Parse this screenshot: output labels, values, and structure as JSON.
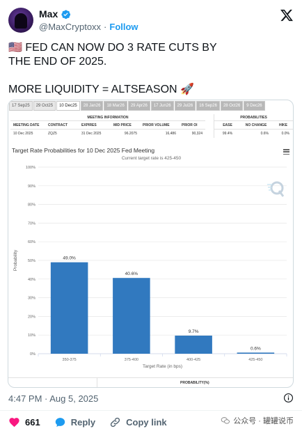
{
  "author": {
    "name": "Max",
    "handle": "@MaxCryptoxx",
    "separator": "·",
    "follow_label": "Follow"
  },
  "tweet": {
    "line1": "🇺🇸 FED CAN NOW DO 3 RATE CUTS BY",
    "line2": "THE END OF 2025.",
    "line3": "MORE LIQUIDITY = ALTSEASON 🚀"
  },
  "card": {
    "date_tabs": [
      "17 Sep25",
      "29 Oct25",
      "10 Dec25",
      "28 Jan26",
      "18 Mar26",
      "29 Apr26",
      "17 Jun26",
      "29 Jul26",
      "16 Sep26",
      "28 Oct26",
      "9 Dec26"
    ],
    "meeting_info": {
      "heading": "MEETING INFORMATION",
      "headers": [
        "MEETING DATE",
        "CONTRACT",
        "EXPIRES",
        "MID PRICE",
        "PRIOR VOLUME",
        "PRIOR OI"
      ],
      "values": [
        "10 Dec 2025",
        "ZQZ5",
        "31 Dec 2025",
        "96.2075",
        "16,486",
        "90,324"
      ]
    },
    "probabilities": {
      "heading": "PROBABILITIES",
      "headers": [
        "EASE",
        "NO CHANGE",
        "HIKE"
      ],
      "values": [
        "99.4%",
        "0.6%",
        "0.0%"
      ]
    },
    "bottom_label": "PROBABILITY(%)"
  },
  "chart_data": {
    "type": "bar",
    "title": "Target Rate Probabilities for 10 Dec 2025 Fed Meeting",
    "subtitle": "Current target rate is 425-450",
    "xlabel": "Target Rate (in bps)",
    "ylabel": "Probability",
    "categories": [
      "350-375",
      "375-400",
      "400-425",
      "425-450"
    ],
    "values": [
      49.0,
      40.6,
      9.7,
      0.6
    ],
    "value_labels": [
      "49.0%",
      "40.6%",
      "9.7%",
      "0.6%"
    ],
    "ylim": [
      0,
      100
    ],
    "yticks": [
      "0%",
      "10%",
      "20%",
      "30%",
      "40%",
      "50%",
      "60%",
      "70%",
      "80%",
      "90%",
      "100%"
    ],
    "bar_color": "#3179bf",
    "grid": true,
    "legend": "none"
  },
  "footer": {
    "timestamp": "4:47 PM · Aug 5, 2025",
    "likes": "661",
    "reply_label": "Reply",
    "copy_link_label": "Copy link",
    "wechat_watermark": "公众号 · 罐罐说币"
  },
  "colors": {
    "accent": "#1d9bf0",
    "like": "#f91880",
    "muted": "#536471"
  }
}
